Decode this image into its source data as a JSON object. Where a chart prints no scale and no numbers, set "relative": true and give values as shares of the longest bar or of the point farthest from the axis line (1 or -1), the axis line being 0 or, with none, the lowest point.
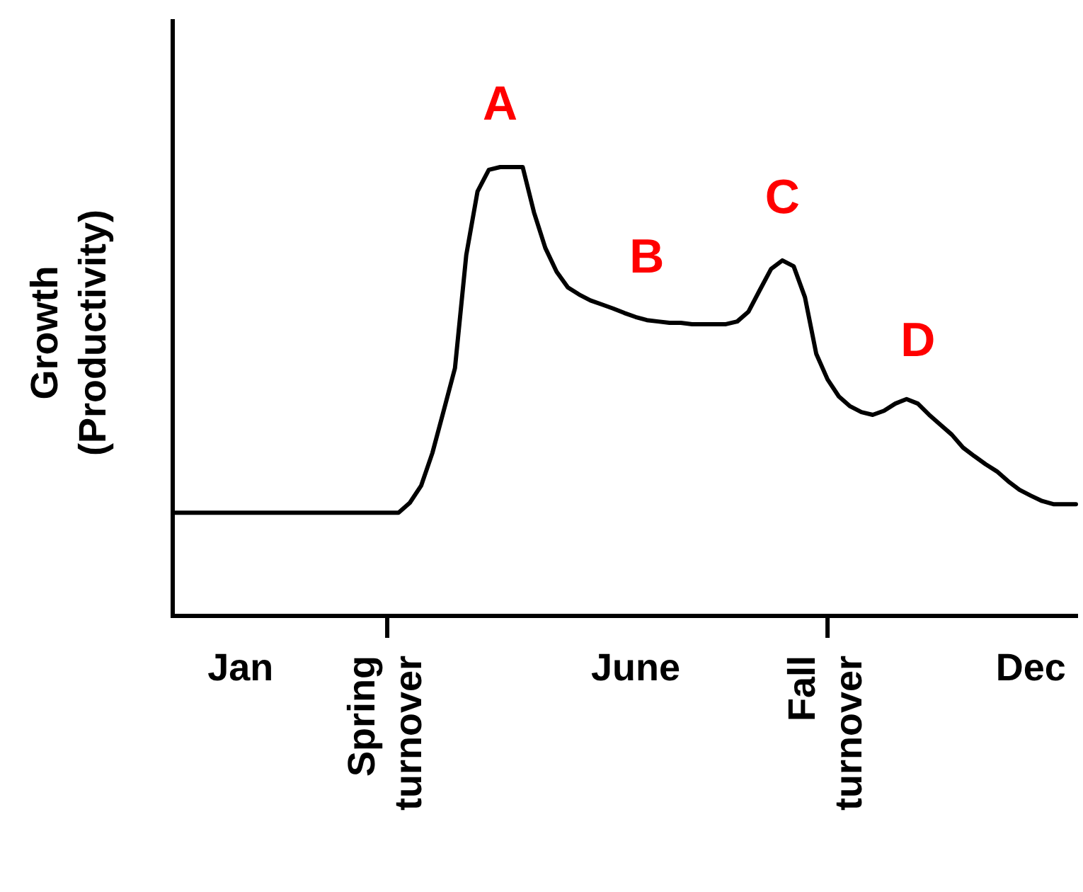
{
  "chart_data": {
    "type": "line",
    "relative": true,
    "ylabel": "Growth (Productivity)",
    "categories": [
      null,
      null,
      null,
      null,
      null,
      null,
      "Jan",
      null,
      null,
      null,
      null,
      null,
      null,
      null,
      null,
      null,
      null,
      null,
      null,
      "Spring turnover",
      null,
      null,
      null,
      null,
      null,
      null,
      null,
      null,
      null,
      null,
      null,
      null,
      null,
      null,
      null,
      null,
      null,
      null,
      null,
      null,
      null,
      "June",
      null,
      null,
      null,
      null,
      null,
      null,
      null,
      null,
      null,
      null,
      null,
      null,
      null,
      null,
      null,
      null,
      "Fall turnover",
      null,
      null,
      null,
      null,
      null,
      null,
      null,
      null,
      null,
      null,
      null,
      null,
      null,
      null,
      null,
      null,
      null,
      "Dec",
      null,
      null,
      null,
      null
    ],
    "series": [
      {
        "color": "#000000",
        "values": [
          0.23,
          0.23,
          0.23,
          0.23,
          0.23,
          0.23,
          0.23,
          0.23,
          0.23,
          0.23,
          0.23,
          0.23,
          0.23,
          0.23,
          0.23,
          0.23,
          0.23,
          0.23,
          0.23,
          0.23,
          0.23,
          0.252,
          0.29,
          0.363,
          0.457,
          0.552,
          0.804,
          0.946,
          0.994,
          1,
          1,
          1,
          0.899,
          0.82,
          0.767,
          0.732,
          0.716,
          0.703,
          0.694,
          0.685,
          0.675,
          0.666,
          0.659,
          0.656,
          0.653,
          0.653,
          0.65,
          0.65,
          0.65,
          0.65,
          0.656,
          0.678,
          0.726,
          0.773,
          0.792,
          0.779,
          0.71,
          0.584,
          0.527,
          0.489,
          0.467,
          0.454,
          0.448,
          0.457,
          0.473,
          0.483,
          0.473,
          0.448,
          0.426,
          0.404,
          0.375,
          0.356,
          0.338,
          0.322,
          0.3,
          0.281,
          0.268,
          0.256,
          0.249,
          0.249,
          0.249
        ]
      }
    ],
    "annotations": [
      "A",
      "B",
      "C",
      "D"
    ],
    "marker": "none",
    "line_style": "solid",
    "legend": false
  }
}
